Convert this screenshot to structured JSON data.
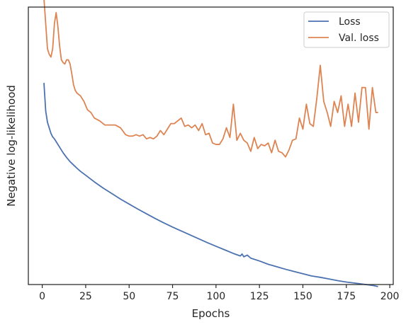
{
  "chart_data": {
    "type": "line",
    "title": "",
    "xlabel": "Epochs",
    "ylabel": "Negative log-likelihood",
    "xlim": [
      -8,
      202
    ],
    "ylim": [
      0,
      100
    ],
    "y_ticks_labeled": false,
    "x_ticks": [
      0,
      25,
      50,
      75,
      100,
      125,
      150,
      175,
      200
    ],
    "grid": false,
    "legend_position": "top-right",
    "series": [
      {
        "name": "Loss",
        "color": "#4c72b0",
        "x": [
          1,
          2,
          3,
          4,
          5,
          6,
          7,
          8,
          9,
          10,
          12,
          14,
          16,
          18,
          20,
          22,
          25,
          30,
          35,
          40,
          45,
          50,
          55,
          60,
          65,
          70,
          75,
          80,
          85,
          90,
          95,
          100,
          105,
          110,
          114,
          115,
          116,
          118,
          120,
          125,
          130,
          135,
          140,
          145,
          150,
          155,
          160,
          165,
          170,
          175,
          180,
          185,
          190,
          193
        ],
        "y": [
          72.5,
          62.5,
          58.5,
          56.5,
          54.5,
          53.2,
          52.5,
          51.5,
          50.5,
          49.5,
          47.5,
          45.8,
          44.3,
          43.1,
          41.9,
          40.8,
          39.4,
          37.0,
          34.8,
          32.8,
          30.8,
          29.0,
          27.2,
          25.5,
          23.8,
          22.2,
          20.7,
          19.3,
          17.9,
          16.5,
          15.1,
          13.8,
          12.5,
          11.2,
          10.3,
          11.0,
          10.0,
          10.6,
          9.5,
          8.5,
          7.3,
          6.4,
          5.5,
          4.7,
          3.9,
          3.1,
          2.6,
          2.0,
          1.4,
          0.9,
          0.5,
          0.1,
          -0.3,
          -0.7
        ]
      },
      {
        "name": "Val. loss",
        "color": "#dd8452",
        "x": [
          1,
          2,
          3,
          4,
          5,
          6,
          7,
          8,
          9,
          10,
          11,
          12,
          13,
          14,
          15,
          16,
          17,
          18,
          19,
          20,
          22,
          24,
          26,
          28,
          30,
          33,
          36,
          39,
          42,
          45,
          48,
          50,
          52,
          54,
          56,
          58,
          60,
          62,
          64,
          66,
          68,
          70,
          72,
          74,
          76,
          78,
          80,
          82,
          84,
          86,
          88,
          90,
          92,
          94,
          96,
          98,
          100,
          102,
          104,
          106,
          108,
          110,
          112,
          114,
          116,
          118,
          120,
          122,
          124,
          126,
          128,
          130,
          132,
          134,
          136,
          138,
          140,
          142,
          144,
          146,
          148,
          150,
          152,
          154,
          156,
          158,
          160,
          162,
          164,
          166,
          168,
          170,
          172,
          174,
          176,
          178,
          180,
          182,
          184,
          186,
          188,
          190,
          192,
          193
        ],
        "y": [
          103,
          94,
          85,
          83,
          82,
          85,
          94,
          98,
          93,
          86,
          81,
          80,
          79.5,
          81,
          81,
          79.5,
          76,
          72,
          70,
          69,
          68,
          66,
          63,
          62,
          60,
          59,
          57.5,
          57.5,
          57.5,
          56.5,
          54,
          53.5,
          53.5,
          54,
          53.5,
          54,
          52.5,
          53,
          52.5,
          53.5,
          55.5,
          54,
          56,
          58,
          58,
          59,
          60,
          57,
          57.5,
          56.5,
          57.5,
          55.5,
          58,
          54,
          54.5,
          51,
          50.5,
          50.5,
          52.5,
          56.5,
          53,
          65,
          52,
          54.5,
          52,
          51,
          48,
          53,
          49,
          50.5,
          50,
          51,
          47.5,
          52,
          48,
          47.5,
          46,
          48.5,
          52,
          52.5,
          60,
          56,
          65,
          58,
          57,
          67,
          79,
          66,
          62,
          57,
          66,
          62,
          68,
          57,
          65,
          57,
          69,
          58.5,
          71,
          71,
          56,
          71,
          62,
          62
        ]
      }
    ]
  }
}
